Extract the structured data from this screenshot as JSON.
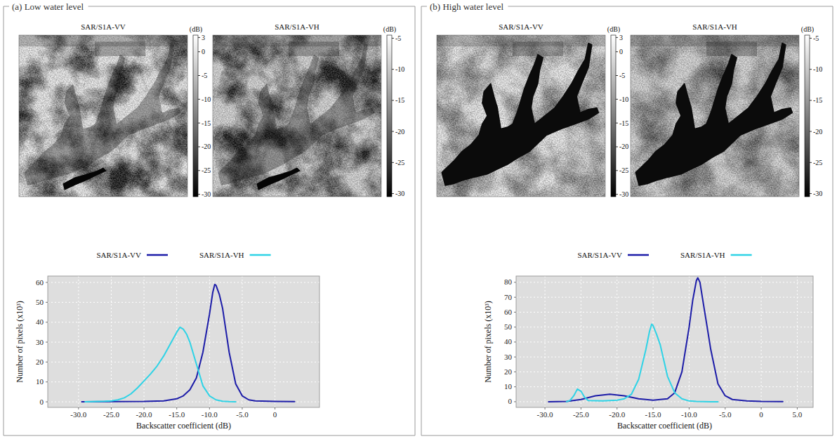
{
  "panels": [
    {
      "title": "(a) Low water level",
      "images": [
        {
          "title": "SAR/S1A-VV",
          "colorbar": {
            "label": "(dB)",
            "range": [
              -30.5,
              3.5
            ],
            "ticks": [
              3,
              0,
              -5,
              -10,
              -15,
              -20,
              -25,
              -30
            ]
          }
        },
        {
          "title": "SAR/S1A-VH",
          "colorbar": {
            "label": "(dB)",
            "range": [
              -30.5,
              -4.5
            ],
            "ticks": [
              -5,
              -10,
              -15,
              -20,
              -25,
              -30
            ]
          }
        }
      ]
    },
    {
      "title": "(b) High water level",
      "images": [
        {
          "title": "SAR/S1A-VV",
          "colorbar": {
            "label": "(dB)",
            "range": [
              -30.5,
              3.5
            ],
            "ticks": [
              3,
              0,
              -5,
              -10,
              -15,
              -20,
              -25,
              -30
            ]
          }
        },
        {
          "title": "SAR/S1A-VH",
          "colorbar": {
            "label": "(dB)",
            "range": [
              -30.5,
              -4.5
            ],
            "ticks": [
              -5,
              -10,
              -15,
              -20,
              -25,
              -30
            ]
          }
        }
      ]
    }
  ],
  "chart_data": [
    {
      "type": "line",
      "x_label": "Backscatter coefficient (dB)",
      "y_label": "Number of pixels (x10³)",
      "xlim": [
        -34.7,
        6.8
      ],
      "ylim": [
        -2.8,
        63.2
      ],
      "xticks": [
        {
          "value": -30,
          "label": "-30.0"
        },
        {
          "value": -25,
          "label": "-25.0"
        },
        {
          "value": -20,
          "label": "-20.0"
        },
        {
          "value": -15,
          "label": "-15.0"
        },
        {
          "value": -10,
          "label": "-10.0"
        },
        {
          "value": -5,
          "label": "-5.0"
        },
        0
      ],
      "yticks": [
        0,
        10,
        20,
        30,
        40,
        50,
        60
      ],
      "grid": true,
      "legend": "top",
      "series": [
        {
          "name": "SAR/S1A-VV",
          "color": "#1c1ca8",
          "x": [
            -29.5,
            -25,
            -20,
            -17,
            -15,
            -14,
            -13,
            -12,
            -11,
            -10,
            -9.5,
            -9.2,
            -9,
            -8.5,
            -8,
            -7.5,
            -7,
            -6,
            -5,
            -4,
            -3,
            0,
            3
          ],
          "values": [
            0,
            0.1,
            0.2,
            0.5,
            1.5,
            3,
            6,
            12,
            25,
            44,
            55,
            59,
            58.5,
            54,
            47,
            36,
            25,
            9,
            3,
            1,
            0.5,
            0.2,
            0.1
          ]
        },
        {
          "name": "SAR/S1A-VH",
          "color": "#2ed3e6",
          "x": [
            -29,
            -26,
            -25,
            -24,
            -23,
            -22,
            -21,
            -20,
            -19,
            -18,
            -17,
            -16,
            -15,
            -14.5,
            -14,
            -13.5,
            -13,
            -12,
            -11,
            -10,
            -9,
            -8,
            -7,
            -6
          ],
          "values": [
            0,
            0.3,
            0.5,
            1,
            2,
            4,
            7,
            10.5,
            14,
            18,
            23,
            29,
            35,
            37.5,
            36.5,
            34,
            30,
            19,
            8,
            3,
            1,
            0.3,
            0.1,
            0
          ]
        }
      ]
    },
    {
      "type": "line",
      "x_label": "Backscatter coefficient (dB)",
      "y_label": "Number of pixels (x10³)",
      "xlim": [
        -34.0,
        7.2
      ],
      "ylim": [
        -3.8,
        84.2
      ],
      "xticks": [
        {
          "value": -30,
          "label": "-30.0"
        },
        {
          "value": -25,
          "label": "-25.0"
        },
        {
          "value": -20,
          "label": "-20.0"
        },
        {
          "value": -15,
          "label": "-15.0"
        },
        {
          "value": -10,
          "label": "-10.0"
        },
        {
          "value": -5,
          "label": "-5.0"
        },
        0,
        {
          "value": 5,
          "label": "5.0"
        }
      ],
      "yticks": [
        0,
        10,
        20,
        30,
        40,
        50,
        60,
        70,
        80
      ],
      "grid": true,
      "legend": "top",
      "series": [
        {
          "name": "SAR/S1A-VV",
          "color": "#1c1ca8",
          "x": [
            -29.5,
            -27,
            -25,
            -23,
            -21,
            -19,
            -17,
            -15,
            -13,
            -12,
            -11,
            -10,
            -9.5,
            -9,
            -8.8,
            -8.5,
            -8,
            -7.5,
            -7,
            -6,
            -5,
            -4,
            -2,
            0,
            3
          ],
          "values": [
            0,
            0.2,
            1.5,
            4,
            5,
            4,
            2,
            1,
            2,
            6,
            20,
            50,
            68,
            81,
            83,
            80,
            65,
            50,
            35,
            12,
            4,
            1.5,
            0.5,
            0.2,
            0.1
          ]
        },
        {
          "name": "SAR/S1A-VH",
          "color": "#2ed3e6",
          "x": [
            -27,
            -26.5,
            -26,
            -25.5,
            -25,
            -24.5,
            -24,
            -22,
            -20,
            -19,
            -18,
            -17,
            -16,
            -15.5,
            -15.2,
            -15,
            -14.5,
            -14,
            -13,
            -12,
            -11,
            -10,
            -9,
            -7,
            -6
          ],
          "values": [
            0,
            1,
            4,
            8.5,
            7,
            3,
            0.8,
            0.5,
            1,
            2,
            5,
            15,
            35,
            47,
            52,
            51,
            45,
            38,
            17,
            6,
            2,
            0.5,
            0.2,
            0,
            0
          ]
        }
      ]
    }
  ]
}
